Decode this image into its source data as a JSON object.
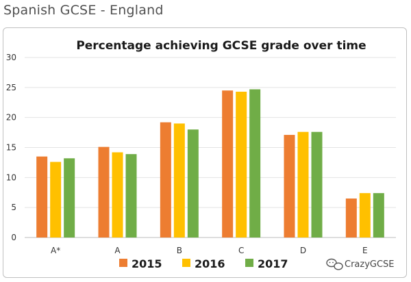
{
  "page": {
    "heading": "Spanish GCSE - England"
  },
  "watermark": {
    "text": "CrazyGCSE",
    "icon": "chat-bubbles-icon"
  },
  "chart_data": {
    "type": "bar",
    "title": "Percentage achieving GCSE grade over time",
    "xlabel": "",
    "ylabel": "",
    "categories": [
      "A*",
      "A",
      "B",
      "C",
      "D",
      "E"
    ],
    "ylim": [
      0,
      30
    ],
    "yticks": [
      0,
      5,
      10,
      15,
      20,
      25,
      30
    ],
    "grid": true,
    "legend_position": "bottom",
    "series": [
      {
        "name": "2015",
        "color": "#ed7d31",
        "values": [
          13.5,
          15.1,
          19.2,
          24.5,
          17.1,
          6.5
        ]
      },
      {
        "name": "2016",
        "color": "#ffc000",
        "values": [
          12.6,
          14.2,
          19.0,
          24.3,
          17.6,
          7.4
        ]
      },
      {
        "name": "2017",
        "color": "#70ad47",
        "values": [
          13.2,
          13.9,
          18.0,
          24.7,
          17.6,
          7.4
        ]
      }
    ]
  }
}
